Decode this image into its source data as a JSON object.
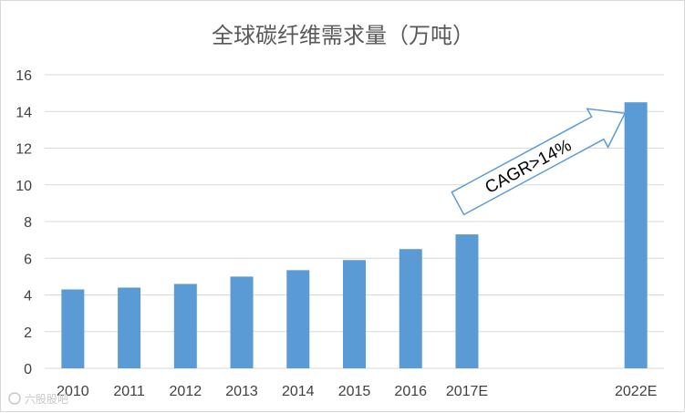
{
  "chart_data": {
    "type": "bar",
    "title": "全球碳纤维需求量（万吨）",
    "xlabel": "",
    "ylabel": "",
    "categories": [
      "2010",
      "2011",
      "2012",
      "2013",
      "2014",
      "2015",
      "2016",
      "2017E",
      "",
      "",
      "2022E"
    ],
    "values": [
      4.3,
      4.4,
      4.6,
      5.0,
      5.35,
      5.9,
      6.5,
      7.3,
      null,
      null,
      14.5
    ],
    "ylim": [
      0,
      16
    ],
    "yticks": [
      0,
      2,
      4,
      6,
      8,
      10,
      12,
      14,
      16
    ],
    "grid": true,
    "legend": "none",
    "bar_color": "#5b9bd5",
    "annotation": {
      "text": "CAGR>14%",
      "shape": "arrow",
      "outline_color": "#5b9bd5"
    }
  },
  "watermark": "六股股吧"
}
